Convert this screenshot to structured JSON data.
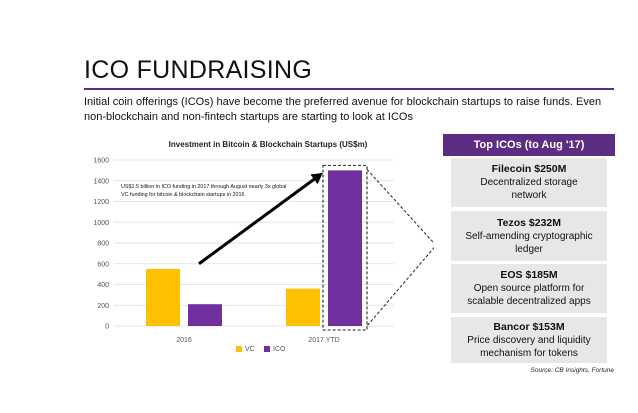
{
  "slide": {
    "title": "ICO FUNDRAISING",
    "intro": "Initial coin offerings (ICOs) have become the preferred avenue for blockchain startups to raise funds. Even non-blockchain and non-fintech startups are starting to look at ICOs",
    "source": "Source: CB Insights, Fortune"
  },
  "chart_data": {
    "type": "bar",
    "title": "Investment in Bitcoin & Blockchain Startups (US$m)",
    "categories": [
      "2016",
      "2017 YTD"
    ],
    "series": [
      {
        "name": "VC",
        "color": "#ffc000",
        "values": [
          550,
          360
        ]
      },
      {
        "name": "ICO",
        "color": "#7030a0",
        "values": [
          210,
          1500
        ]
      }
    ],
    "ylim": [
      0,
      1600
    ],
    "yticks": [
      0,
      200,
      400,
      600,
      800,
      1000,
      1200,
      1400,
      1600
    ],
    "grid": true,
    "legend": "bottom",
    "annotation": "US$1.5 billion in ICO funding in 2017 through August nearly 3x global VC funding for bitcoin & blockchain startups in 2016"
  },
  "panel": {
    "header": "Top ICOs (to Aug '17)",
    "header_color": "#5c2d82",
    "items": [
      {
        "name": "Filecoin $250M",
        "desc": "Decentralized storage network"
      },
      {
        "name": "Tezos $232M",
        "desc": "Self-amending cryptographic ledger"
      },
      {
        "name": "EOS $185M",
        "desc": "Open source platform for scalable decentralized apps"
      },
      {
        "name": "Bancor $153M",
        "desc": "Price discovery and liquidity mechanism for tokens"
      }
    ]
  }
}
